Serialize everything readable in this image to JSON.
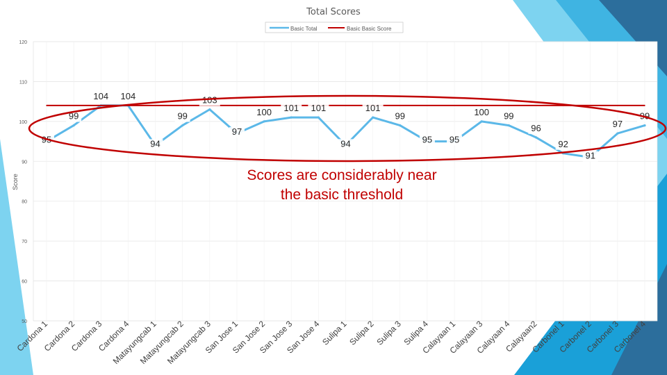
{
  "chart_data": {
    "type": "line",
    "title": "Total Scores",
    "xlabel": "",
    "ylabel": "Score",
    "ylim": [
      50,
      120
    ],
    "yticks": [
      50,
      60,
      70,
      80,
      90,
      100,
      110,
      120
    ],
    "grid": true,
    "legend_position": "top-center",
    "categories": [
      "Cardona 1",
      "Cardona 2",
      "Cardona 3",
      "Cardona 4",
      "Matayungcab 1",
      "Matayungcab 2",
      "Matayungcab 3",
      "San Jose 1",
      "San Jose 2",
      "San Jose 3",
      "San Jose 4",
      "Sulipa 1",
      "Sulipa 2",
      "Sulipa 3",
      "Sulipa 4",
      "Calayaan 1",
      "Calayaan 3",
      "Calayaan 4",
      "Calayaan2",
      "Carbonel 1",
      "Carbonel 2",
      "Carbonel 3",
      "Carbonel 4"
    ],
    "series": [
      {
        "name": "Basic Total",
        "values": [
          95,
          99,
          104,
          104,
          94,
          99,
          103,
          97,
          100,
          101,
          101,
          94,
          101,
          99,
          95,
          95,
          100,
          99,
          96,
          92,
          91,
          97,
          99
        ],
        "color": "#5bb8e8"
      },
      {
        "name": "Basic Basic Score",
        "values": [
          104,
          104,
          104,
          104,
          104,
          104,
          104,
          104,
          104,
          104,
          104,
          104,
          104,
          104,
          104,
          104,
          104,
          104,
          104,
          104,
          104,
          104,
          104
        ],
        "color": "#c00000"
      }
    ],
    "data_labels": [
      "95",
      "99",
      "104",
      "104",
      "94",
      "99",
      "103",
      "97",
      "100",
      "101",
      "101",
      "94",
      "101",
      "99",
      "95",
      "95",
      "100",
      "99",
      "96",
      "92",
      "91",
      "97",
      "99"
    ],
    "annotation": {
      "text_line1": "Scores are considerably near",
      "text_line2": "the basic threshold",
      "color": "#c00000"
    }
  },
  "colors": {
    "accent_light": "#7dd3f0",
    "accent_mid": "#1aa0d8",
    "accent_dark": "#2c6e9c",
    "grid": "#e6e6e6"
  }
}
